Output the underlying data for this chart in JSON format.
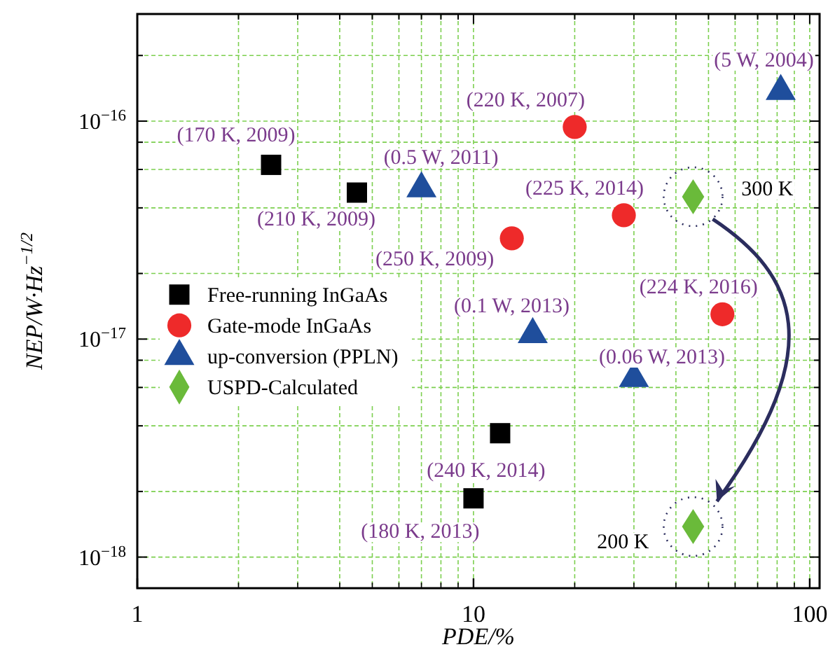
{
  "chart_data": {
    "type": "scatter",
    "xlabel": "PDE/%",
    "ylabel": "NEP/W·Hz$^{−1/2}$",
    "log": "xy",
    "grid": true,
    "legend": "left",
    "xlim": [
      1,
      107
    ],
    "ylim": [
      7.2e-19,
      3.1e-16
    ],
    "xticks": [
      1,
      {
        "value": 2,
        "label": null
      },
      {
        "value": 3,
        "label": null
      },
      {
        "value": 4,
        "label": null
      },
      {
        "value": 5,
        "label": null
      },
      {
        "value": 6,
        "label": null
      },
      {
        "value": 7,
        "label": null
      },
      {
        "value": 8,
        "label": null
      },
      {
        "value": 9,
        "label": null
      },
      10,
      {
        "value": 20,
        "label": null
      },
      {
        "value": 30,
        "label": null
      },
      {
        "value": 40,
        "label": null
      },
      {
        "value": 50,
        "label": null
      },
      {
        "value": 60,
        "label": null
      },
      {
        "value": 70,
        "label": null
      },
      {
        "value": 80,
        "label": null
      },
      {
        "value": 90,
        "label": null
      },
      100
    ],
    "yticks": [
      {
        "value": 1e-18,
        "label": "10$^{−18}$"
      },
      {
        "value": 2e-18,
        "label": null
      },
      {
        "value": 4e-18,
        "label": null
      },
      {
        "value": 6e-18,
        "label": null
      },
      {
        "value": 8e-18,
        "label": null
      },
      {
        "value": 1e-17,
        "label": "10$^{−17}$"
      },
      {
        "value": 2e-17,
        "label": null
      },
      {
        "value": 4e-17,
        "label": null
      },
      {
        "value": 6e-17,
        "label": null
      },
      {
        "value": 8e-17,
        "label": null
      },
      {
        "value": 1e-16,
        "label": "10$^{−16}$"
      },
      {
        "value": 2e-16,
        "label": null
      }
    ],
    "series": [
      {
        "name": "Free-running InGaAs",
        "color": "#000000",
        "marker": "square",
        "x": [
          2.5,
          4.5,
          12,
          10
        ],
        "values": [
          6.3e-17,
          4.7e-17,
          3.7e-18,
          1.86e-18
        ]
      },
      {
        "name": "Gate-mode InGaAs",
        "color": "#ee2a2a",
        "marker": "circle",
        "x": [
          20,
          13,
          28,
          55
        ],
        "values": [
          9.4e-17,
          2.9e-17,
          3.7e-17,
          1.3e-17
        ]
      },
      {
        "name": "up-conversion (PPLN)",
        "color": "#1f4e9c",
        "marker": "triangle",
        "x": [
          7,
          15,
          30,
          82
        ],
        "values": [
          4.9e-17,
          1.05e-17,
          6.6e-18,
          1.37e-16
        ]
      },
      {
        "name": "USPD-Calculated",
        "color": "#6aba3a",
        "marker": "diamond",
        "x": [
          45,
          45
        ],
        "values": [
          4.5e-17,
          1.38e-18
        ]
      }
    ],
    "annotations": [
      {
        "text": "(170 K, 2009)",
        "x": 2.5,
        "y": 6.3e-17
      },
      {
        "text": "(210 K, 2009)",
        "x": 4.5,
        "y": 4.7e-17
      },
      {
        "text": "(0.5 W, 2011)",
        "x": 7,
        "y": 4.9e-17
      },
      {
        "text": "(220 K, 2007)",
        "x": 20,
        "y": 9.4e-17
      },
      {
        "text": "(225 K, 2014)",
        "x": 28,
        "y": 3.7e-17
      },
      {
        "text": "(250 K, 2009)",
        "x": 13,
        "y": 2.9e-17
      },
      {
        "text": "(0.1 W, 2013)",
        "x": 15,
        "y": 1.05e-17
      },
      {
        "text": "(224 K, 2016)",
        "x": 55,
        "y": 1.3e-17
      },
      {
        "text": "(0.06 W, 2013)",
        "x": 30,
        "y": 6.6e-18
      },
      {
        "text": "(5 W, 2004)",
        "x": 82,
        "y": 1.37e-16
      },
      {
        "text": "(240 K, 2014)",
        "x": 12,
        "y": 3.7e-18
      },
      {
        "text": "(180 K, 2013)",
        "x": 10,
        "y": 1.86e-18
      },
      {
        "text": "300 K",
        "x": 45,
        "y": 4.5e-17
      },
      {
        "text": "200 K",
        "x": 45,
        "y": 1.38e-18
      }
    ]
  }
}
